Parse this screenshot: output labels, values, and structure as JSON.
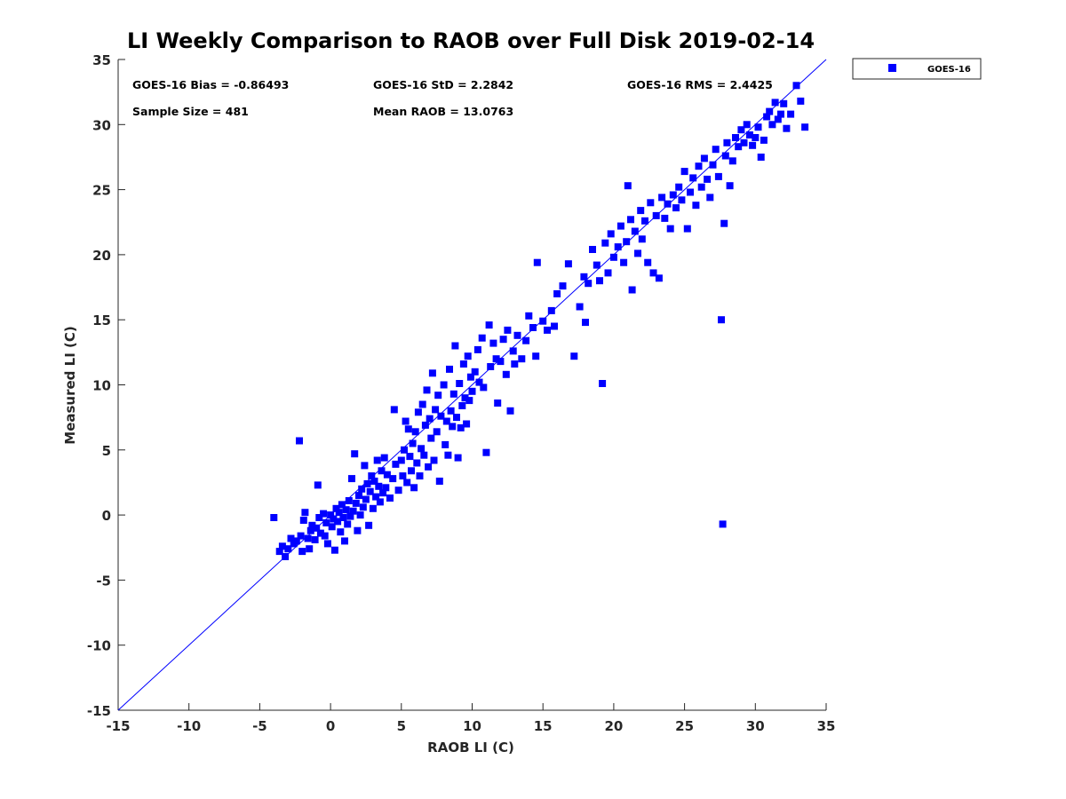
{
  "chart_data": {
    "type": "scatter",
    "title": "LI Weekly Comparison to RAOB over Full Disk 2019-02-14",
    "xlabel": "RAOB LI (C)",
    "ylabel": "Measured LI (C)",
    "xlim": [
      -15,
      35
    ],
    "ylim": [
      -15,
      35
    ],
    "xticks": [
      "-15",
      "-10",
      "-5",
      "0",
      "5",
      "10",
      "15",
      "20",
      "25",
      "30",
      "35"
    ],
    "yticks": [
      "-15",
      "-10",
      "-5",
      "0",
      "5",
      "10",
      "15",
      "20",
      "25",
      "30",
      "35"
    ],
    "xtick_values": [
      -15,
      -10,
      -5,
      0,
      5,
      10,
      15,
      20,
      25,
      30,
      35
    ],
    "ytick_values": [
      -15,
      -10,
      -5,
      0,
      5,
      10,
      15,
      20,
      25,
      30,
      35
    ],
    "reference_line": {
      "name": "1:1 line",
      "x": [
        -15,
        35
      ],
      "y": [
        -15,
        35
      ]
    },
    "legend": {
      "position": "outside-top-right",
      "entries": [
        "GOES-16"
      ]
    },
    "stats": {
      "bias": "GOES-16 Bias = -0.86493",
      "std": "GOES-16 StD = 2.2842",
      "rms": "GOES-16 RMS = 2.4425",
      "sample_size": "Sample Size = 481",
      "mean_raob": "Mean RAOB = 13.0763"
    },
    "series": [
      {
        "name": "GOES-16",
        "color": "#0000ff",
        "marker": "square",
        "points": [
          [
            -4.0,
            -0.2
          ],
          [
            -3.6,
            -2.8
          ],
          [
            -3.4,
            -2.4
          ],
          [
            -3.2,
            -3.2
          ],
          [
            -3.0,
            -2.6
          ],
          [
            -2.8,
            -1.8
          ],
          [
            -2.6,
            -2.2
          ],
          [
            -2.4,
            -2.0
          ],
          [
            -2.2,
            5.7
          ],
          [
            -2.1,
            -1.6
          ],
          [
            -2.0,
            -2.8
          ],
          [
            -1.9,
            -0.4
          ],
          [
            -1.8,
            0.2
          ],
          [
            -1.6,
            -1.8
          ],
          [
            -1.5,
            -2.6
          ],
          [
            -1.4,
            -1.2
          ],
          [
            -1.3,
            -0.8
          ],
          [
            -1.1,
            -1.9
          ],
          [
            -1.0,
            -1.0
          ],
          [
            -0.9,
            2.3
          ],
          [
            -0.8,
            -0.2
          ],
          [
            -0.7,
            -1.4
          ],
          [
            -0.5,
            0.1
          ],
          [
            -0.4,
            -1.6
          ],
          [
            -0.3,
            -0.6
          ],
          [
            -0.2,
            -2.2
          ],
          [
            0.0,
            0.0
          ],
          [
            0.1,
            -0.9
          ],
          [
            0.2,
            -0.3
          ],
          [
            0.3,
            -2.7
          ],
          [
            0.4,
            0.5
          ],
          [
            0.5,
            -0.5
          ],
          [
            0.6,
            0.2
          ],
          [
            0.7,
            -1.3
          ],
          [
            0.8,
            0.8
          ],
          [
            0.9,
            -0.2
          ],
          [
            1.0,
            -2.0
          ],
          [
            1.1,
            0.4
          ],
          [
            1.2,
            -0.7
          ],
          [
            1.3,
            1.1
          ],
          [
            1.4,
            -0.1
          ],
          [
            1.5,
            2.8
          ],
          [
            1.6,
            0.3
          ],
          [
            1.7,
            4.7
          ],
          [
            1.8,
            0.9
          ],
          [
            1.9,
            -1.2
          ],
          [
            2.0,
            1.5
          ],
          [
            2.1,
            0.0
          ],
          [
            2.2,
            2.0
          ],
          [
            2.3,
            0.6
          ],
          [
            2.4,
            3.8
          ],
          [
            2.5,
            1.2
          ],
          [
            2.6,
            2.4
          ],
          [
            2.7,
            -0.8
          ],
          [
            2.8,
            1.8
          ],
          [
            2.9,
            3.0
          ],
          [
            3.0,
            0.5
          ],
          [
            3.1,
            2.6
          ],
          [
            3.2,
            1.4
          ],
          [
            3.3,
            4.2
          ],
          [
            3.4,
            2.2
          ],
          [
            3.5,
            1.0
          ],
          [
            3.6,
            3.4
          ],
          [
            3.7,
            1.7
          ],
          [
            3.8,
            4.4
          ],
          [
            3.9,
            2.1
          ],
          [
            4.0,
            3.1
          ],
          [
            4.2,
            1.3
          ],
          [
            4.4,
            2.8
          ],
          [
            4.5,
            8.1
          ],
          [
            4.6,
            3.9
          ],
          [
            4.8,
            1.9
          ],
          [
            5.0,
            4.2
          ],
          [
            5.1,
            3.0
          ],
          [
            5.2,
            5.0
          ],
          [
            5.3,
            7.2
          ],
          [
            5.4,
            2.5
          ],
          [
            5.5,
            6.6
          ],
          [
            5.6,
            4.5
          ],
          [
            5.7,
            3.4
          ],
          [
            5.8,
            5.5
          ],
          [
            5.9,
            2.1
          ],
          [
            6.0,
            6.4
          ],
          [
            6.1,
            4.0
          ],
          [
            6.2,
            7.9
          ],
          [
            6.3,
            3.0
          ],
          [
            6.4,
            5.1
          ],
          [
            6.5,
            8.5
          ],
          [
            6.6,
            4.6
          ],
          [
            6.7,
            6.9
          ],
          [
            6.8,
            9.6
          ],
          [
            6.9,
            3.7
          ],
          [
            7.0,
            7.4
          ],
          [
            7.1,
            5.9
          ],
          [
            7.2,
            10.9
          ],
          [
            7.3,
            4.2
          ],
          [
            7.4,
            8.1
          ],
          [
            7.5,
            6.4
          ],
          [
            7.6,
            9.2
          ],
          [
            7.7,
            2.6
          ],
          [
            7.8,
            7.6
          ],
          [
            8.0,
            10.0
          ],
          [
            8.1,
            5.4
          ],
          [
            8.2,
            7.2
          ],
          [
            8.3,
            4.6
          ],
          [
            8.4,
            11.2
          ],
          [
            8.5,
            8.0
          ],
          [
            8.6,
            6.8
          ],
          [
            8.7,
            9.3
          ],
          [
            8.8,
            13.0
          ],
          [
            8.9,
            7.5
          ],
          [
            9.0,
            4.4
          ],
          [
            9.1,
            10.1
          ],
          [
            9.2,
            6.7
          ],
          [
            9.3,
            8.4
          ],
          [
            9.4,
            11.6
          ],
          [
            9.5,
            9.0
          ],
          [
            9.6,
            7.0
          ],
          [
            9.7,
            12.2
          ],
          [
            9.8,
            8.8
          ],
          [
            9.9,
            10.6
          ],
          [
            10.0,
            9.5
          ],
          [
            10.2,
            11.0
          ],
          [
            10.4,
            12.7
          ],
          [
            10.5,
            10.2
          ],
          [
            10.7,
            13.6
          ],
          [
            10.8,
            9.8
          ],
          [
            11.0,
            4.8
          ],
          [
            11.2,
            14.6
          ],
          [
            11.3,
            11.4
          ],
          [
            11.5,
            13.2
          ],
          [
            11.7,
            12.0
          ],
          [
            11.8,
            8.6
          ],
          [
            12.0,
            11.8
          ],
          [
            12.2,
            13.5
          ],
          [
            12.4,
            10.8
          ],
          [
            12.5,
            14.2
          ],
          [
            12.7,
            8.0
          ],
          [
            12.9,
            12.6
          ],
          [
            13.0,
            11.6
          ],
          [
            13.2,
            13.8
          ],
          [
            13.5,
            12.0
          ],
          [
            13.8,
            13.4
          ],
          [
            14.0,
            15.3
          ],
          [
            14.3,
            14.4
          ],
          [
            14.5,
            12.2
          ],
          [
            14.6,
            19.4
          ],
          [
            15.0,
            14.9
          ],
          [
            15.3,
            14.2
          ],
          [
            15.6,
            15.7
          ],
          [
            15.8,
            14.5
          ],
          [
            16.0,
            17.0
          ],
          [
            16.4,
            17.6
          ],
          [
            16.8,
            19.3
          ],
          [
            17.2,
            12.2
          ],
          [
            17.6,
            16.0
          ],
          [
            17.9,
            18.3
          ],
          [
            18.0,
            14.8
          ],
          [
            18.2,
            17.8
          ],
          [
            18.5,
            20.4
          ],
          [
            18.8,
            19.2
          ],
          [
            19.0,
            18.0
          ],
          [
            19.2,
            10.1
          ],
          [
            19.4,
            20.9
          ],
          [
            19.6,
            18.6
          ],
          [
            19.8,
            21.6
          ],
          [
            20.0,
            19.8
          ],
          [
            20.3,
            20.6
          ],
          [
            20.5,
            22.2
          ],
          [
            20.7,
            19.4
          ],
          [
            20.9,
            21.0
          ],
          [
            21.0,
            25.3
          ],
          [
            21.2,
            22.7
          ],
          [
            21.3,
            17.3
          ],
          [
            21.5,
            21.8
          ],
          [
            21.7,
            20.1
          ],
          [
            21.9,
            23.4
          ],
          [
            22.0,
            21.2
          ],
          [
            22.2,
            22.6
          ],
          [
            22.4,
            19.4
          ],
          [
            22.6,
            24.0
          ],
          [
            22.8,
            18.6
          ],
          [
            23.0,
            23.0
          ],
          [
            23.2,
            18.2
          ],
          [
            23.4,
            24.4
          ],
          [
            23.6,
            22.8
          ],
          [
            23.8,
            23.9
          ],
          [
            24.0,
            22.0
          ],
          [
            24.2,
            24.6
          ],
          [
            24.4,
            23.6
          ],
          [
            24.6,
            25.2
          ],
          [
            24.8,
            24.2
          ],
          [
            25.0,
            26.4
          ],
          [
            25.2,
            22.0
          ],
          [
            25.4,
            24.8
          ],
          [
            25.6,
            25.9
          ],
          [
            25.8,
            23.8
          ],
          [
            26.0,
            26.8
          ],
          [
            26.2,
            25.2
          ],
          [
            26.4,
            27.4
          ],
          [
            26.6,
            25.8
          ],
          [
            26.8,
            24.4
          ],
          [
            27.0,
            26.9
          ],
          [
            27.2,
            28.1
          ],
          [
            27.4,
            26.0
          ],
          [
            27.6,
            15.0
          ],
          [
            27.7,
            -0.7
          ],
          [
            27.8,
            22.4
          ],
          [
            27.9,
            27.6
          ],
          [
            28.0,
            28.6
          ],
          [
            28.2,
            25.3
          ],
          [
            28.4,
            27.2
          ],
          [
            28.6,
            29.0
          ],
          [
            28.8,
            28.3
          ],
          [
            29.0,
            29.6
          ],
          [
            29.2,
            28.6
          ],
          [
            29.4,
            30.0
          ],
          [
            29.6,
            29.2
          ],
          [
            29.8,
            28.4
          ],
          [
            30.0,
            29.0
          ],
          [
            30.2,
            29.8
          ],
          [
            30.4,
            27.5
          ],
          [
            30.6,
            28.8
          ],
          [
            30.8,
            30.6
          ],
          [
            31.0,
            31.0
          ],
          [
            31.2,
            30.0
          ],
          [
            31.4,
            31.7
          ],
          [
            31.6,
            30.4
          ],
          [
            31.8,
            30.8
          ],
          [
            32.0,
            31.6
          ],
          [
            32.2,
            29.7
          ],
          [
            32.5,
            30.8
          ],
          [
            32.9,
            33.0
          ],
          [
            33.2,
            31.8
          ],
          [
            33.5,
            29.8
          ]
        ]
      }
    ]
  }
}
